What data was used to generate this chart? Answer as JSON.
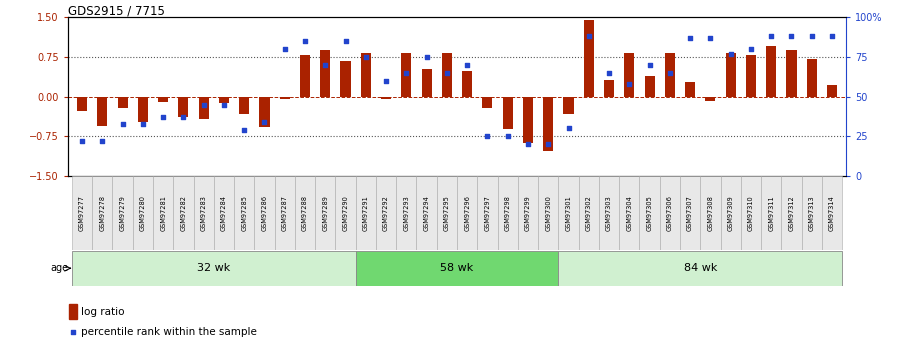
{
  "title": "GDS2915 / 7715",
  "samples": [
    "GSM97277",
    "GSM97278",
    "GSM97279",
    "GSM97280",
    "GSM97281",
    "GSM97282",
    "GSM97283",
    "GSM97284",
    "GSM97285",
    "GSM97286",
    "GSM97287",
    "GSM97288",
    "GSM97289",
    "GSM97290",
    "GSM97291",
    "GSM97292",
    "GSM97293",
    "GSM97294",
    "GSM97295",
    "GSM97296",
    "GSM97297",
    "GSM97298",
    "GSM97299",
    "GSM97300",
    "GSM97301",
    "GSM97302",
    "GSM97303",
    "GSM97304",
    "GSM97305",
    "GSM97306",
    "GSM97307",
    "GSM97308",
    "GSM97309",
    "GSM97310",
    "GSM97311",
    "GSM97312",
    "GSM97313",
    "GSM97314"
  ],
  "log_ratio": [
    -0.28,
    -0.55,
    -0.22,
    -0.48,
    -0.1,
    -0.38,
    -0.42,
    -0.12,
    -0.32,
    -0.58,
    -0.05,
    0.78,
    0.88,
    0.68,
    0.82,
    -0.05,
    0.82,
    0.52,
    0.82,
    0.48,
    -0.22,
    -0.62,
    -0.88,
    -1.02,
    -0.32,
    1.45,
    0.32,
    0.82,
    0.38,
    0.82,
    0.28,
    -0.08,
    0.82,
    0.78,
    0.95,
    0.88,
    0.72,
    0.22
  ],
  "percentile": [
    22,
    22,
    33,
    33,
    37,
    37,
    45,
    45,
    29,
    34,
    80,
    85,
    70,
    85,
    75,
    60,
    65,
    75,
    65,
    70,
    25,
    25,
    20,
    20,
    30,
    88,
    65,
    58,
    70,
    65,
    87,
    87,
    77,
    80,
    88,
    88,
    88,
    88
  ],
  "groups": [
    {
      "label": "32 wk",
      "start": 0,
      "end": 14
    },
    {
      "label": "58 wk",
      "start": 14,
      "end": 24
    },
    {
      "label": "84 wk",
      "start": 24,
      "end": 38
    }
  ],
  "group_fill_colors": [
    "#d0f0d0",
    "#70d870",
    "#d0f0d0"
  ],
  "bar_color": "#aa2200",
  "dot_color": "#2244cc",
  "ylim_left": [
    -1.5,
    1.5
  ],
  "yticks_left": [
    -1.5,
    -0.75,
    0.0,
    0.75,
    1.5
  ],
  "ylim_right": [
    0,
    100
  ],
  "yticks_right": [
    0,
    25,
    50,
    75,
    100
  ],
  "legend_bar_label": "log ratio",
  "legend_dot_label": "percentile rank within the sample",
  "age_label": "age"
}
